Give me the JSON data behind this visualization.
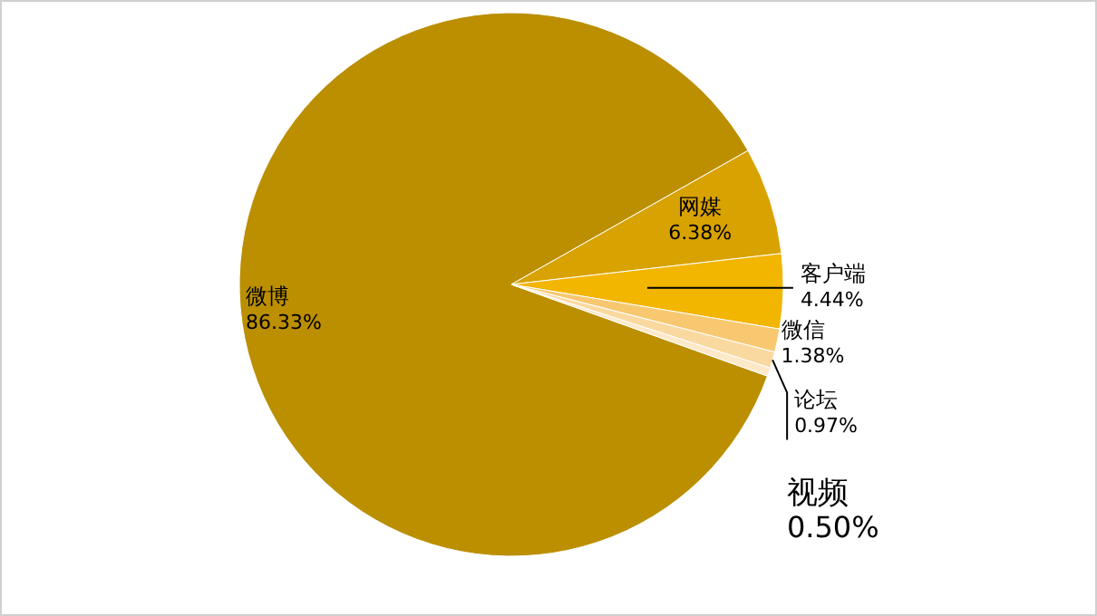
{
  "chart_data": {
    "type": "pie",
    "categories": [
      "微博",
      "网媒",
      "客户端",
      "微信",
      "论坛",
      "视频"
    ],
    "values": [
      86.33,
      6.38,
      4.44,
      1.38,
      0.97,
      0.5
    ],
    "colors": [
      "#bb8f00",
      "#d8a200",
      "#f2b500",
      "#f7c870",
      "#fad9a0",
      "#fde8c8"
    ],
    "value_labels": [
      "86.33%",
      "6.38%",
      "4.44%",
      "1.38%",
      "0.97%",
      "0.50%"
    ]
  }
}
